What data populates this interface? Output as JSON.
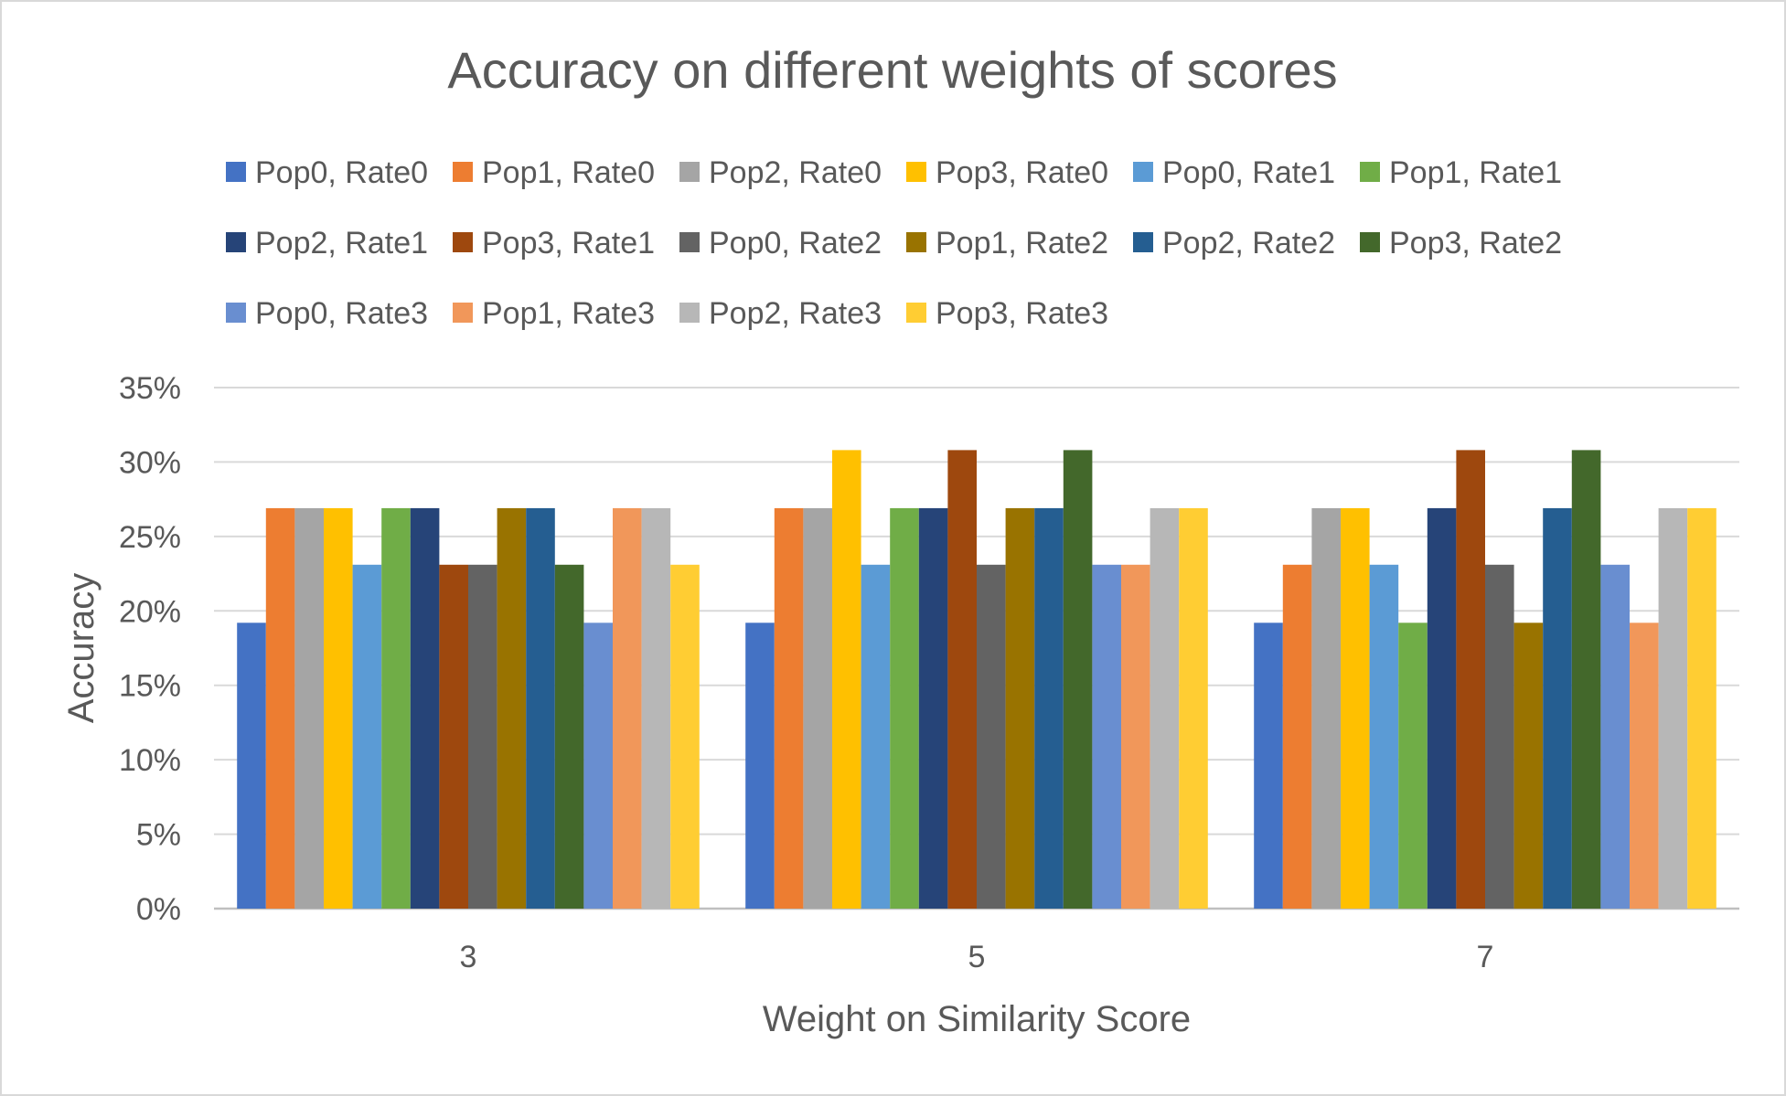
{
  "chart_data": {
    "type": "bar",
    "title": "Accuracy on different weights of scores",
    "xlabel": "Weight on Similarity Score",
    "ylabel": "Accuracy",
    "categories": [
      "3",
      "5",
      "7"
    ],
    "ylim": [
      0,
      0.35
    ],
    "yticks": [
      "0%",
      "5%",
      "10%",
      "15%",
      "20%",
      "25%",
      "30%",
      "35%"
    ],
    "grid": true,
    "legend_position": "top",
    "series": [
      {
        "name": "Pop0, Rate0",
        "color": "#4472C4",
        "values": [
          0.192,
          0.192,
          0.192
        ]
      },
      {
        "name": "Pop1, Rate0",
        "color": "#ED7D31",
        "values": [
          0.269,
          0.269,
          0.231
        ]
      },
      {
        "name": "Pop2, Rate0",
        "color": "#A5A5A5",
        "values": [
          0.269,
          0.269,
          0.269
        ]
      },
      {
        "name": "Pop3, Rate0",
        "color": "#FFC000",
        "values": [
          0.269,
          0.308,
          0.269
        ]
      },
      {
        "name": "Pop0, Rate1",
        "color": "#5B9BD5",
        "values": [
          0.231,
          0.231,
          0.231
        ]
      },
      {
        "name": "Pop1, Rate1",
        "color": "#70AD47",
        "values": [
          0.269,
          0.269,
          0.192
        ]
      },
      {
        "name": "Pop2, Rate1",
        "color": "#264478",
        "values": [
          0.269,
          0.269,
          0.269
        ]
      },
      {
        "name": "Pop3, Rate1",
        "color": "#9E480E",
        "values": [
          0.231,
          0.308,
          0.308
        ]
      },
      {
        "name": "Pop0, Rate2",
        "color": "#636363",
        "values": [
          0.231,
          0.231,
          0.231
        ]
      },
      {
        "name": "Pop1, Rate2",
        "color": "#997300",
        "values": [
          0.269,
          0.269,
          0.192
        ]
      },
      {
        "name": "Pop2, Rate2",
        "color": "#255E91",
        "values": [
          0.269,
          0.269,
          0.269
        ]
      },
      {
        "name": "Pop3, Rate2",
        "color": "#43682B",
        "values": [
          0.231,
          0.308,
          0.308
        ]
      },
      {
        "name": "Pop0, Rate3",
        "color": "#698ED0",
        "values": [
          0.192,
          0.231,
          0.231
        ]
      },
      {
        "name": "Pop1, Rate3",
        "color": "#F1975A",
        "values": [
          0.269,
          0.231,
          0.192
        ]
      },
      {
        "name": "Pop2, Rate3",
        "color": "#B7B7B7",
        "values": [
          0.269,
          0.269,
          0.269
        ]
      },
      {
        "name": "Pop3, Rate3",
        "color": "#FFCD33",
        "values": [
          0.231,
          0.269,
          0.269
        ]
      }
    ]
  }
}
